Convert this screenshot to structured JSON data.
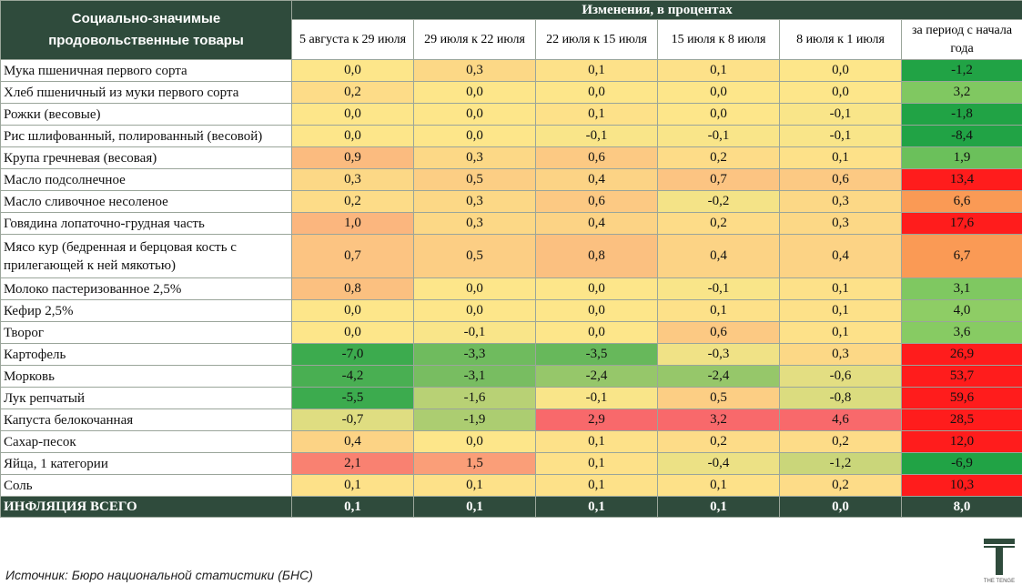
{
  "header": {
    "product_col": "Социально-значимые продовольственные товары",
    "group": "Изменения, в процентах",
    "periods": [
      "5 августа к 29 июля",
      "29 июля к 22 июля",
      "22 июля к 15 июля",
      "15 июля к 8 июля",
      "8 июля к 1 июля",
      "за период с начала года"
    ]
  },
  "chart_data": {
    "type": "table",
    "title": "Изменения, в процентах",
    "columns": [
      "5 августа к 29 июля",
      "29 июля к 22 июля",
      "22 июля к 15 июля",
      "15 июля к 8 июля",
      "8 июля к 1 июля",
      "за период с начала года"
    ],
    "rows": [
      {
        "name": "Мука пшеничная первого сорта",
        "values": [
          "0,0",
          "0,3",
          "0,1",
          "0,1",
          "0,0",
          "-1,2"
        ]
      },
      {
        "name": "Хлеб пшеничный из муки первого сорта",
        "values": [
          "0,2",
          "0,0",
          "0,0",
          "0,0",
          "0,0",
          "3,2"
        ]
      },
      {
        "name": "Рожки (весовые)",
        "values": [
          "0,0",
          "0,0",
          "0,1",
          "0,0",
          "-0,1",
          "-1,8"
        ]
      },
      {
        "name": "Рис шлифованный, полированный (весовой)",
        "values": [
          "0,0",
          "0,0",
          "-0,1",
          "-0,1",
          "-0,1",
          "-8,4"
        ]
      },
      {
        "name": "Крупа гречневая (весовая)",
        "values": [
          "0,9",
          "0,3",
          "0,6",
          "0,2",
          "0,1",
          "1,9"
        ]
      },
      {
        "name": "Масло подсолнечное",
        "values": [
          "0,3",
          "0,5",
          "0,4",
          "0,7",
          "0,6",
          "13,4"
        ]
      },
      {
        "name": "Масло сливочное несоленое",
        "values": [
          "0,2",
          "0,3",
          "0,6",
          "-0,2",
          "0,3",
          "6,6"
        ]
      },
      {
        "name": "Говядина лопаточно-грудная часть",
        "values": [
          "1,0",
          "0,3",
          "0,4",
          "0,2",
          "0,3",
          "17,6"
        ]
      },
      {
        "name": "Мясо кур (бедренная и берцовая кость с прилегающей к ней мякотью)",
        "values": [
          "0,7",
          "0,5",
          "0,8",
          "0,4",
          "0,4",
          "6,7"
        ]
      },
      {
        "name": "Молоко пастеризованное 2,5%",
        "values": [
          "0,8",
          "0,0",
          "0,0",
          "-0,1",
          "0,1",
          "3,1"
        ]
      },
      {
        "name": "Кефир 2,5%",
        "values": [
          "0,0",
          "0,0",
          "0,0",
          "0,1",
          "0,1",
          "4,0"
        ]
      },
      {
        "name": "Творог",
        "values": [
          "0,0",
          "-0,1",
          "0,0",
          "0,6",
          "0,1",
          "3,6"
        ]
      },
      {
        "name": "Картофель",
        "values": [
          "-7,0",
          "-3,3",
          "-3,5",
          "-0,3",
          "0,3",
          "26,9"
        ]
      },
      {
        "name": "Морковь",
        "values": [
          "-4,2",
          "-3,1",
          "-2,4",
          "-2,4",
          "-0,6",
          "53,7"
        ]
      },
      {
        "name": "Лук репчатый",
        "values": [
          "-5,5",
          "-1,6",
          "-0,1",
          "0,5",
          "-0,8",
          "59,6"
        ]
      },
      {
        "name": "Капуста белокочанная",
        "values": [
          "-0,7",
          "-1,9",
          "2,9",
          "3,2",
          "4,6",
          "28,5"
        ]
      },
      {
        "name": "Сахар-песок",
        "values": [
          "0,4",
          "0,0",
          "0,1",
          "0,2",
          "0,2",
          "12,0"
        ]
      },
      {
        "name": "Яйца, 1 категории",
        "values": [
          "2,1",
          "1,5",
          "0,1",
          "-0,4",
          "-1,2",
          "-6,9"
        ]
      },
      {
        "name": "Соль",
        "values": [
          "0,1",
          "0,1",
          "0,1",
          "0,1",
          "0,2",
          "10,3"
        ]
      }
    ],
    "total": {
      "name": "ИНФЛЯЦИЯ ВСЕГО",
      "values": [
        "0,1",
        "0,1",
        "0,1",
        "0,1",
        "0,0",
        "8,0"
      ]
    },
    "colors": {
      "header_bg": "#2f4b3c",
      "scale_negative": "#3cab4e",
      "scale_zero": "#fde68a",
      "scale_positive": "#f8696b",
      "ytd_negative": "#21a345",
      "ytd_high": "#ff1c1c"
    }
  },
  "footer": {
    "source": "Источник: Бюро национальной статистики (БНС)",
    "logo_text": "THE TENGE"
  }
}
